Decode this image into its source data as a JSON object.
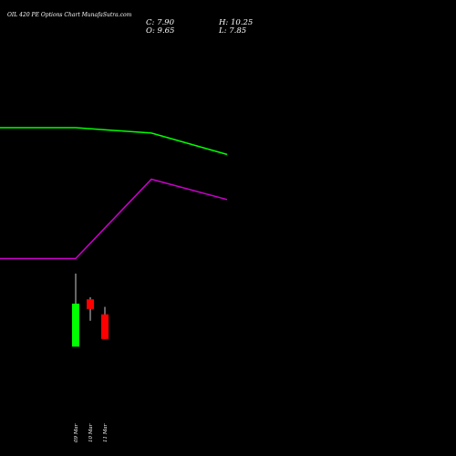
{
  "chart_data": {
    "type": "candlestick",
    "title": "OIL 420 PE Options Chart MunafaSutra.com",
    "ohlc_readout": {
      "close": "C: 7.90",
      "open": "O: 9.65",
      "high": "H: 10.25",
      "low": "L: 7.85"
    },
    "dates": [
      "09 Mar",
      "10 Mar",
      "11 Mar"
    ],
    "candles": [
      {
        "date": "09 Mar",
        "open": 6.4,
        "close": 8.4,
        "high": 9.8,
        "low": 6.4,
        "color": "#00ff00"
      },
      {
        "date": "10 Mar",
        "open": 8.6,
        "close": 8.15,
        "high": 8.7,
        "low": 7.6,
        "color": "#ff0000"
      },
      {
        "date": "11 Mar",
        "open": 7.9,
        "close": 6.75,
        "high": 8.25,
        "low": 6.75,
        "color": "#ff0000"
      }
    ],
    "series": [
      {
        "color": "#00ff00",
        "points": [
          {
            "x": "08 Mar",
            "y": 16.6
          },
          {
            "x": "09 Mar",
            "y": 16.6
          },
          {
            "x": "10 Mar",
            "y": 16.35
          },
          {
            "x": "11 Mar",
            "y": 15.35
          }
        ]
      },
      {
        "color": "#cc00cc",
        "points": [
          {
            "x": "08 Mar",
            "y": 10.5
          },
          {
            "x": "09 Mar",
            "y": 10.5
          },
          {
            "x": "10 Mar",
            "y": 14.2
          },
          {
            "x": "11 Mar",
            "y": 13.25
          }
        ]
      }
    ],
    "ylim": [
      3,
      20
    ],
    "grid": false,
    "legend": "none"
  }
}
